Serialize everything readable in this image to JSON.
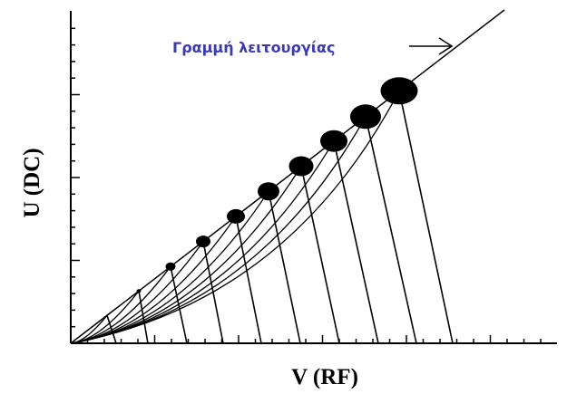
{
  "diagram": {
    "x_axis_label": "V (RF)",
    "y_axis_label": "U (DC)",
    "operating_line_label": "Γραμμή λειτουργίας",
    "colors": {
      "ink": "#000000",
      "annotation": "#3a3ab8",
      "background": "#ffffff"
    }
  }
}
